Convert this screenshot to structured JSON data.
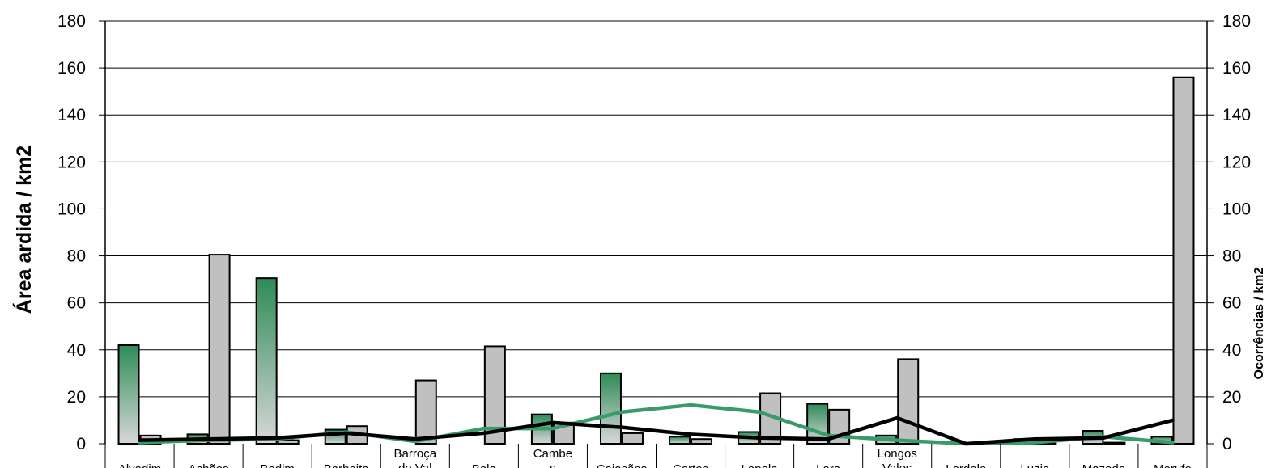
{
  "chart_data": {
    "type": "bar",
    "ylabel": "Área ardida / km2",
    "y2label": "Ocorrências / km2",
    "ylim": [
      0,
      180
    ],
    "y2lim": [
      0,
      180
    ],
    "yticks": [
      "0",
      "20",
      "40",
      "60",
      "80",
      "100",
      "120",
      "140",
      "160",
      "180"
    ],
    "grid": true,
    "categories": [
      [
        "Alvadim"
      ],
      [
        "Achões"
      ],
      [
        "Bodim"
      ],
      [
        "Barbeita"
      ],
      [
        "Barroça",
        "de Val"
      ],
      [
        "Bela"
      ],
      [
        "Cambe",
        "s"
      ],
      [
        "Caiações"
      ],
      [
        "Cortes"
      ],
      [
        "Lapela"
      ],
      [
        "Lara"
      ],
      [
        "Longos",
        "Vales"
      ],
      [
        "Lordelo"
      ],
      [
        "Luzio"
      ],
      [
        "Mazedo"
      ],
      [
        "Merufe"
      ]
    ],
    "series": [
      {
        "kind": "bar",
        "color": "#2e8b57",
        "values": [
          42,
          4,
          70.5,
          6,
          0,
          0,
          12.5,
          30,
          3,
          5,
          17,
          3.5,
          0,
          2,
          5.5,
          3
        ]
      },
      {
        "kind": "bar",
        "color": "#c0c0c0",
        "values": [
          3.5,
          80.5,
          1.5,
          7.5,
          27,
          41.5,
          9,
          4.5,
          2,
          21.5,
          14.5,
          36,
          0,
          0.5,
          0.5,
          156
        ]
      },
      {
        "kind": "line",
        "color": "#3a9a6a",
        "values": [
          0.5,
          1.5,
          2,
          5,
          1,
          6.5,
          6.5,
          13.5,
          16.5,
          13.5,
          3.5,
          1.5,
          0,
          0.5,
          3,
          0.5
        ]
      },
      {
        "kind": "line",
        "color": "#000000",
        "values": [
          1.5,
          2,
          2.5,
          4.5,
          2,
          4.5,
          9,
          7,
          4,
          2.5,
          2,
          11,
          0,
          2,
          2.5,
          10
        ]
      }
    ]
  }
}
